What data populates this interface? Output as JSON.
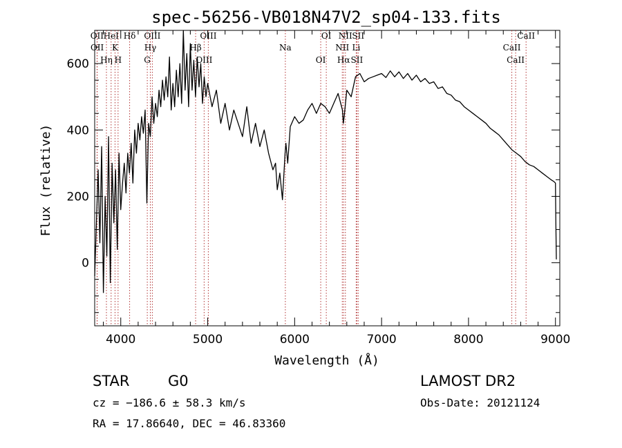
{
  "header": {
    "title": "spec-56256-VB018N47V2_sp04-133.fits"
  },
  "info": {
    "class": "STAR",
    "subclass": "G0",
    "survey": "LAMOST DR2",
    "cz": "cz = −186.6 ± 58.3 km/s",
    "obs_date": "Obs-Date: 20121124",
    "coords": "RA =  17.86640, DEC =  46.83360"
  },
  "colors": {
    "spectrum": "#000000",
    "line_marker": "#b03030"
  },
  "chart_data": {
    "type": "line",
    "title": "spec-56256-VB018N47V2_sp04-133.fits",
    "xlabel": "Wavelength (Å)",
    "ylabel": "Flux (relative)",
    "xlim": [
      3700,
      9050
    ],
    "ylim": [
      -190,
      700
    ],
    "x_ticks": [
      4000,
      5000,
      6000,
      7000,
      8000,
      9000
    ],
    "y_ticks": [
      0,
      200,
      400,
      600
    ],
    "x_tick_labels": [
      "4000",
      "5000",
      "6000",
      "7000",
      "8000",
      "9000"
    ],
    "y_tick_labels": [
      "0",
      "200",
      "400",
      "600"
    ],
    "grid": false,
    "legend": "none",
    "series": [
      {
        "x": [
          3700,
          3720,
          3740,
          3760,
          3780,
          3800,
          3820,
          3840,
          3860,
          3880,
          3900,
          3920,
          3940,
          3960,
          3980,
          4000,
          4020,
          4040,
          4060,
          4080,
          4100,
          4120,
          4140,
          4160,
          4180,
          4200,
          4220,
          4240,
          4260,
          4280,
          4300,
          4320,
          4340,
          4360,
          4380,
          4400,
          4420,
          4440,
          4460,
          4480,
          4500,
          4520,
          4540,
          4560,
          4580,
          4600,
          4620,
          4640,
          4660,
          4680,
          4700,
          4720,
          4740,
          4760,
          4780,
          4800,
          4820,
          4840,
          4860,
          4880,
          4900,
          4920,
          4940,
          4960,
          4980,
          5000,
          5050,
          5100,
          5150,
          5200,
          5250,
          5300,
          5350,
          5400,
          5450,
          5500,
          5550,
          5600,
          5650,
          5700,
          5750,
          5780,
          5800,
          5830,
          5860,
          5890,
          5900,
          5920,
          5950,
          6000,
          6050,
          6100,
          6150,
          6200,
          6250,
          6300,
          6350,
          6400,
          6450,
          6500,
          6550,
          6560,
          6570,
          6600,
          6650,
          6700,
          6750,
          6800,
          6850,
          6900,
          6950,
          7000,
          7050,
          7100,
          7150,
          7200,
          7250,
          7300,
          7350,
          7400,
          7450,
          7500,
          7550,
          7600,
          7650,
          7700,
          7750,
          7800,
          7850,
          7900,
          7950,
          8000,
          8050,
          8100,
          8150,
          8200,
          8250,
          8300,
          8350,
          8400,
          8450,
          8500,
          8550,
          8600,
          8650,
          8700,
          8750,
          8800,
          8850,
          8900,
          8950,
          8980,
          9000,
          9005,
          9010
        ],
        "y": [
          -40,
          120,
          280,
          60,
          350,
          -90,
          200,
          20,
          380,
          -60,
          300,
          120,
          280,
          40,
          330,
          160,
          240,
          300,
          210,
          330,
          270,
          360,
          240,
          400,
          330,
          420,
          370,
          440,
          390,
          460,
          180,
          420,
          380,
          500,
          420,
          480,
          440,
          520,
          470,
          550,
          490,
          560,
          500,
          620,
          460,
          540,
          470,
          580,
          500,
          600,
          480,
          700,
          520,
          630,
          470,
          660,
          520,
          610,
          500,
          620,
          530,
          600,
          480,
          560,
          500,
          540,
          470,
          520,
          420,
          480,
          400,
          460,
          420,
          380,
          470,
          360,
          420,
          350,
          400,
          330,
          280,
          300,
          220,
          270,
          190,
          330,
          360,
          300,
          410,
          440,
          420,
          430,
          460,
          480,
          450,
          480,
          470,
          450,
          480,
          510,
          460,
          420,
          440,
          520,
          500,
          560,
          570,
          545,
          555,
          560,
          565,
          570,
          558,
          578,
          560,
          575,
          555,
          570,
          550,
          565,
          545,
          555,
          540,
          545,
          525,
          530,
          510,
          505,
          490,
          485,
          470,
          460,
          450,
          440,
          430,
          420,
          405,
          395,
          385,
          370,
          355,
          340,
          330,
          320,
          305,
          295,
          290,
          280,
          270,
          260,
          250,
          245,
          240,
          120,
          10
        ]
      }
    ],
    "line_markers": [
      {
        "name": "OII",
        "wavelength": 3727
      },
      {
        "name": "OII",
        "wavelength": 3729
      },
      {
        "name": "Hη",
        "wavelength": 3835
      },
      {
        "name": "HeI",
        "wavelength": 3889
      },
      {
        "name": "K",
        "wavelength": 3934
      },
      {
        "name": "H",
        "wavelength": 3969
      },
      {
        "name": "Hδ",
        "wavelength": 4102
      },
      {
        "name": "Hγ",
        "wavelength": 4340
      },
      {
        "name": "G",
        "wavelength": 4305
      },
      {
        "name": "OIII",
        "wavelength": 4363
      },
      {
        "name": "Hβ",
        "wavelength": 4861
      },
      {
        "name": "OIII",
        "wavelength": 4959
      },
      {
        "name": "OIII",
        "wavelength": 5007
      },
      {
        "name": "Na",
        "wavelength": 5893
      },
      {
        "name": "OI",
        "wavelength": 6300
      },
      {
        "name": "OI",
        "wavelength": 6364
      },
      {
        "name": "NII",
        "wavelength": 6548
      },
      {
        "name": "Hα",
        "wavelength": 6563
      },
      {
        "name": "NII",
        "wavelength": 6584
      },
      {
        "name": "Li",
        "wavelength": 6708
      },
      {
        "name": "SII",
        "wavelength": 6716
      },
      {
        "name": "SII",
        "wavelength": 6731
      },
      {
        "name": "CaII",
        "wavelength": 8498
      },
      {
        "name": "CaII",
        "wavelength": 8542
      },
      {
        "name": "CaII",
        "wavelength": 8662
      }
    ]
  }
}
